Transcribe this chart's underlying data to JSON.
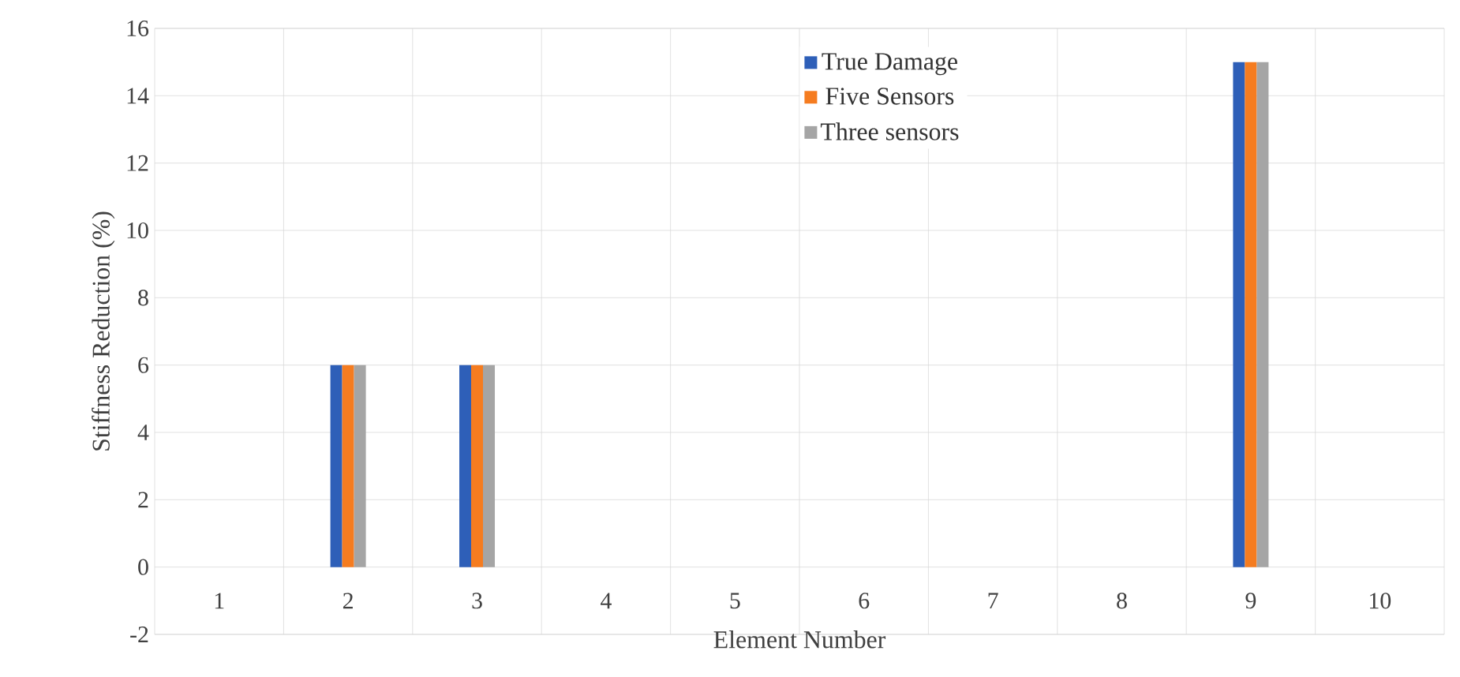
{
  "chart_data": {
    "type": "bar",
    "xlabel": "Element Number",
    "ylabel": "Stiffness Reduction (%)",
    "categories": [
      "1",
      "2",
      "3",
      "4",
      "5",
      "6",
      "7",
      "8",
      "9",
      "10"
    ],
    "series": [
      {
        "name": "True Damage",
        "color": "#2e5fb8",
        "values": [
          0,
          6,
          6,
          0,
          0,
          0,
          0,
          0,
          15,
          0
        ]
      },
      {
        "name": "Five Sensors",
        "color": "#f57c20",
        "values": [
          0,
          6,
          6,
          0,
          0,
          0,
          0,
          0,
          15,
          0
        ]
      },
      {
        "name": "Three sensors",
        "color": "#a5a5a5",
        "values": [
          0,
          6,
          6,
          0,
          0,
          0,
          0,
          0,
          15,
          0
        ]
      }
    ],
    "ylim": [
      -2,
      16
    ],
    "yticks": [
      -2,
      0,
      2,
      4,
      6,
      8,
      10,
      12,
      14,
      16
    ],
    "grid": true,
    "legend": "top"
  }
}
